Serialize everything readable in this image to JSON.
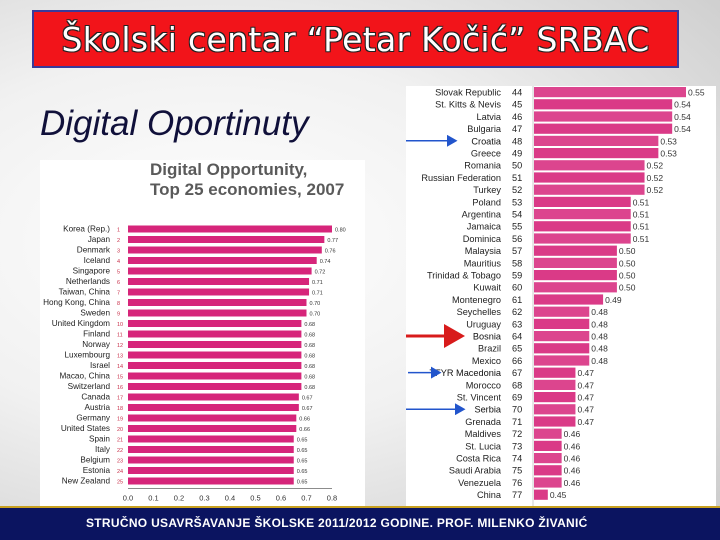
{
  "slide": {
    "title": "Školski centar “Petar Kočić” SRBAC",
    "subtitle": "Digital Oportinuty",
    "footer": "STRUČNO USAVRŠAVANJE ŠKOLSKE 2011/2012 GODINE. PROF. MILENKO ŽIVANIĆ",
    "colors": {
      "title_bg": "#f2141a",
      "bar": "#d6257a",
      "footer_bg": "#0b1460",
      "arrow_red": "#d81b1b",
      "arrow_blue": "#2255cc"
    }
  },
  "chart_data": [
    {
      "type": "bar",
      "orientation": "horizontal",
      "title": "Digital Opportunity, Top 25 economies, 2007",
      "title_lines": [
        "Digital Opportunity,",
        "Top 25 economies, 2007"
      ],
      "categories": [
        "Korea (Rep.)",
        "Japan",
        "Denmark",
        "Iceland",
        "Singapore",
        "Netherlands",
        "Taiwan, China",
        "Hong Kong, China",
        "Sweden",
        "United Kingdom",
        "Finland",
        "Norway",
        "Luxembourg",
        "Israel",
        "Macao, China",
        "Switzerland",
        "Canada",
        "Austria",
        "Germany",
        "United States",
        "Spain",
        "Italy",
        "Belgium",
        "Estonia",
        "New Zealand"
      ],
      "ranks": [
        "1",
        "2",
        "3",
        "4",
        "5",
        "6",
        "7",
        "8",
        "9",
        "10",
        "11",
        "12",
        "13",
        "14",
        "15",
        "16",
        "17",
        "18",
        "19",
        "20",
        "21",
        "22",
        "23",
        "24",
        "25"
      ],
      "values": [
        0.8,
        0.77,
        0.76,
        0.74,
        0.72,
        0.71,
        0.71,
        0.7,
        0.7,
        0.68,
        0.68,
        0.68,
        0.68,
        0.68,
        0.68,
        0.68,
        0.67,
        0.67,
        0.66,
        0.66,
        0.65,
        0.65,
        0.65,
        0.65,
        0.65
      ],
      "value_labels": [
        "0.80",
        "0.77",
        "0.76",
        "0.74",
        "0.72",
        "0.71",
        "0.71",
        "0.70",
        "0.70",
        "0.68",
        "0.68",
        "0.68",
        "0.68",
        "0.68",
        "0.68",
        "0.68",
        "0.67",
        "0.67",
        "0.66",
        "0.66",
        "0.65",
        "0.65",
        "0.65",
        "0.65",
        "0.65"
      ],
      "xlim": [
        0,
        0.8
      ],
      "xticks": [
        "0.0",
        "0.1",
        "0.2",
        "0.3",
        "0.4",
        "0.5",
        "0.6",
        "0.7",
        "0.8"
      ]
    },
    {
      "type": "bar",
      "orientation": "horizontal",
      "categories": [
        "Slovak Republic",
        "St. Kitts & Nevis",
        "Latvia",
        "Bulgaria",
        "Croatia",
        "Greece",
        "Romania",
        "Russian Federation",
        "Turkey",
        "Poland",
        "Argentina",
        "Jamaica",
        "Dominica",
        "Malaysia",
        "Mauritius",
        "Trinidad & Tobago",
        "Kuwait",
        "Montenegro",
        "Seychelles",
        "Uruguay",
        "Bosnia",
        "Brazil",
        "Mexico",
        "TFYR Macedonia",
        "Morocco",
        "St. Vincent",
        "Serbia",
        "Grenada",
        "Maldives",
        "St. Lucia",
        "Costa Rica",
        "Saudi Arabia",
        "Venezuela",
        "China"
      ],
      "ranks": [
        "44",
        "45",
        "46",
        "47",
        "48",
        "49",
        "50",
        "51",
        "52",
        "53",
        "54",
        "55",
        "56",
        "57",
        "58",
        "59",
        "60",
        "61",
        "62",
        "63",
        "64",
        "65",
        "66",
        "67",
        "68",
        "69",
        "70",
        "71",
        "72",
        "73",
        "74",
        "75",
        "76",
        "77"
      ],
      "values": [
        0.55,
        0.54,
        0.54,
        0.54,
        0.53,
        0.53,
        0.52,
        0.52,
        0.52,
        0.51,
        0.51,
        0.51,
        0.51,
        0.5,
        0.5,
        0.5,
        0.5,
        0.49,
        0.48,
        0.48,
        0.48,
        0.48,
        0.48,
        0.47,
        0.47,
        0.47,
        0.47,
        0.47,
        0.46,
        0.46,
        0.46,
        0.46,
        0.46,
        0.45
      ],
      "value_labels": [
        "0.55",
        "0.54",
        "0.54",
        "0.54",
        "0.53",
        "0.53",
        "0.52",
        "0.52",
        "0.52",
        "0.51",
        "0.51",
        "0.51",
        "0.51",
        "0.50",
        "0.50",
        "0.50",
        "0.50",
        "0.49",
        "0.48",
        "0.48",
        "0.48",
        "0.48",
        "0.48",
        "0.47",
        "0.47",
        "0.47",
        "0.47",
        "0.47",
        "0.46",
        "0.46",
        "0.46",
        "0.46",
        "0.46",
        "0.45"
      ],
      "highlighted": [
        "Croatia",
        "Bosnia",
        "TFYR Macedonia",
        "Serbia"
      ]
    }
  ]
}
